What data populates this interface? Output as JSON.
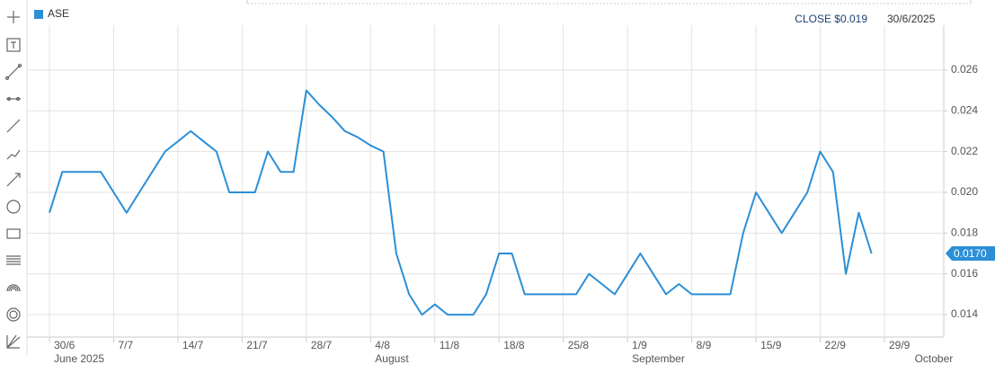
{
  "chart_data": {
    "type": "line",
    "series": [
      {
        "name": "ASE",
        "color": "#2b8fd6",
        "values": [
          0.019,
          0.021,
          0.021,
          0.021,
          0.021,
          0.02,
          0.019,
          0.02,
          0.021,
          0.022,
          0.0225,
          0.023,
          0.0225,
          0.022,
          0.02,
          0.02,
          0.02,
          0.022,
          0.021,
          0.021,
          0.025,
          0.0243,
          0.0237,
          0.023,
          0.0227,
          0.0223,
          0.022,
          0.017,
          0.015,
          0.014,
          0.0145,
          0.014,
          0.014,
          0.014,
          0.015,
          0.017,
          0.017,
          0.015,
          0.015,
          0.015,
          0.015,
          0.015,
          0.016,
          0.0155,
          0.015,
          0.016,
          0.017,
          0.016,
          0.015,
          0.0155,
          0.015,
          0.015,
          0.015,
          0.015,
          0.018,
          0.02,
          0.019,
          0.018,
          0.019,
          0.02,
          0.022,
          0.021,
          0.016,
          0.019,
          0.017,
          null,
          null,
          null,
          null,
          null
        ]
      }
    ],
    "categories": [
      "30/6",
      null,
      null,
      null,
      null,
      "7/7",
      null,
      null,
      null,
      null,
      "14/7",
      null,
      null,
      null,
      null,
      "21/7",
      null,
      null,
      null,
      null,
      "28/7",
      null,
      null,
      null,
      null,
      "4/8",
      null,
      null,
      null,
      null,
      "11/8",
      null,
      null,
      null,
      null,
      "18/8",
      null,
      null,
      null,
      null,
      "25/8",
      null,
      null,
      null,
      null,
      "1/9",
      null,
      null,
      null,
      null,
      "8/9",
      null,
      null,
      null,
      null,
      "15/9",
      null,
      null,
      null,
      null,
      "22/9",
      null,
      null,
      null,
      null,
      "29/9",
      null,
      null,
      null,
      null
    ],
    "category_groups": [
      "June 2025",
      null,
      null,
      null,
      null,
      null,
      null,
      null,
      null,
      null,
      null,
      null,
      null,
      null,
      null,
      null,
      null,
      null,
      null,
      null,
      null,
      null,
      null,
      null,
      null,
      "August",
      null,
      null,
      null,
      null,
      null,
      null,
      null,
      null,
      null,
      null,
      null,
      null,
      null,
      null,
      null,
      null,
      null,
      null,
      null,
      "September",
      null,
      null,
      null,
      null,
      null,
      null,
      null,
      null,
      null,
      null,
      null,
      null,
      null,
      null,
      null,
      null,
      null,
      null,
      null,
      null,
      null,
      "October",
      null,
      null
    ],
    "ylim": [
      0.0129,
      0.0282
    ],
    "yticks": [
      0.014,
      0.016,
      0.018,
      {
        "value": 0.02,
        "label": "0.020"
      },
      0.022,
      0.024,
      0.026
    ],
    "grid": true,
    "close_label": "CLOSE $0.019",
    "header_date": "30/6/2025",
    "last_value_label": "0.0170"
  }
}
